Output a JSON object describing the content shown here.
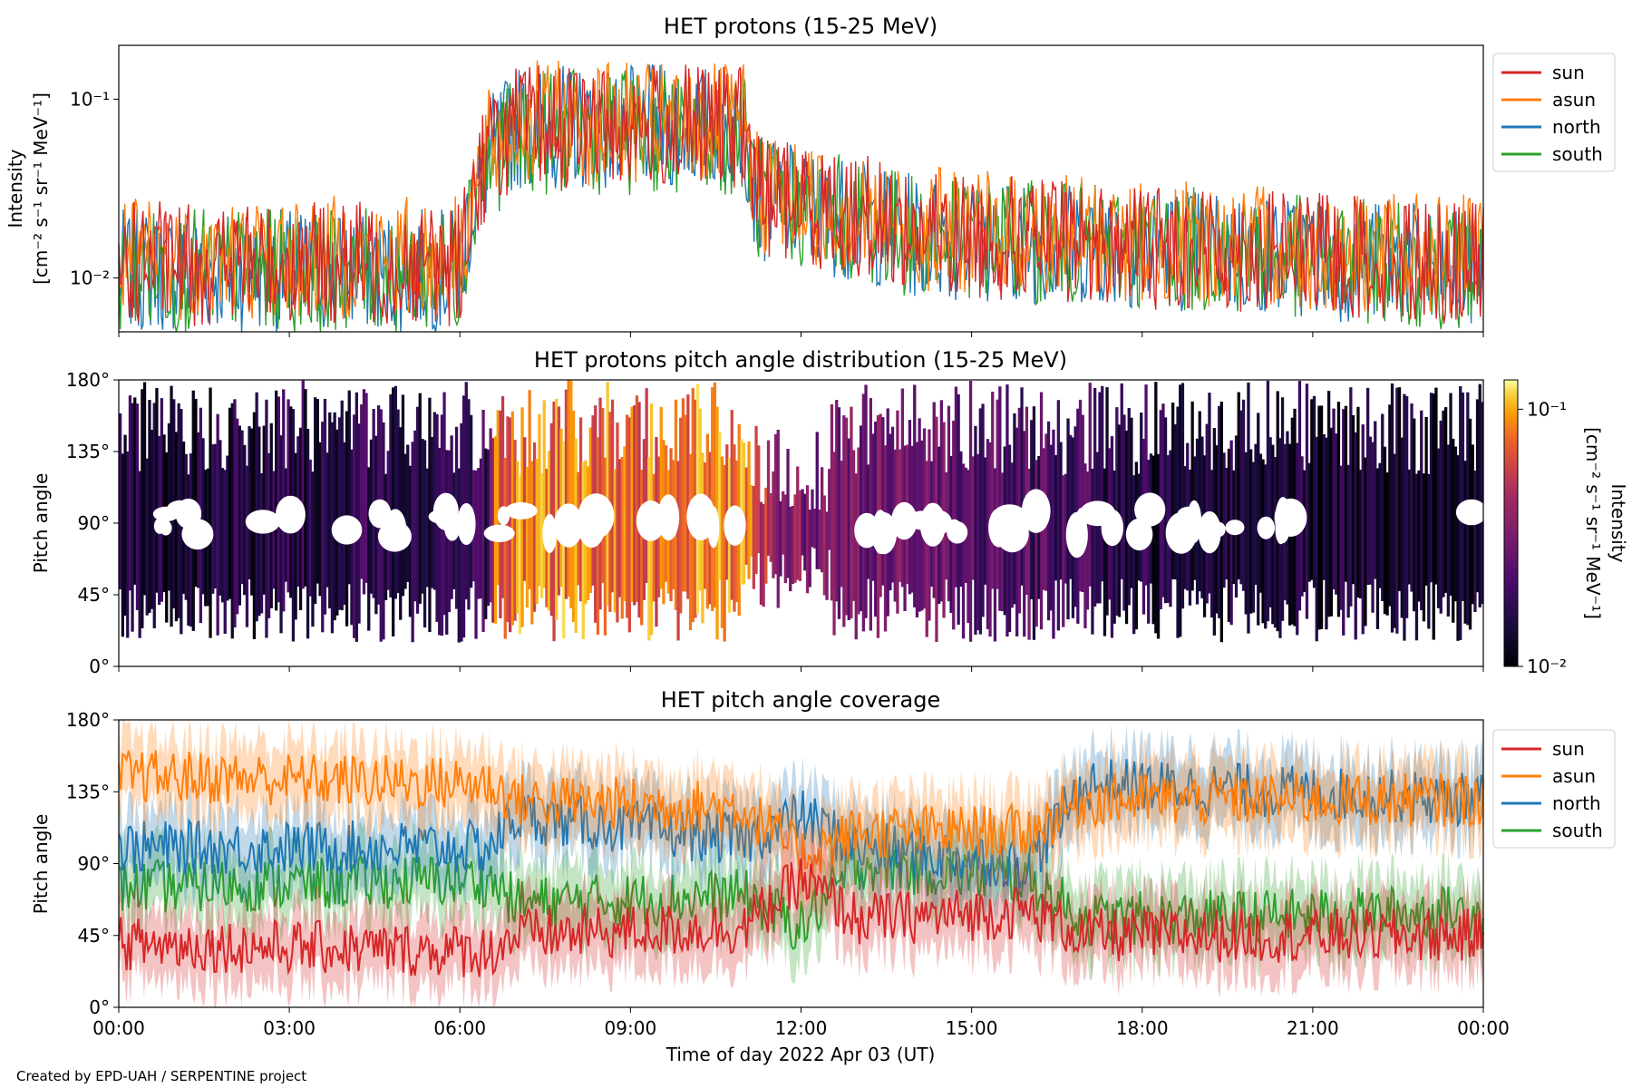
{
  "footer": "Created by EPD-UAH / SERPENTINE project",
  "series_colors": {
    "sun": "#d62728",
    "asun": "#ff7f0e",
    "north": "#1f77b4",
    "south": "#2ca02c"
  },
  "chart_data": [
    {
      "type": "line",
      "title": "HET protons (15-25 MeV)",
      "ylabel": [
        "Intensity",
        "[cm⁻² s⁻¹ sr⁻¹ MeV⁻¹]"
      ],
      "yscale": "log",
      "ylim": [
        0.005,
        0.2
      ],
      "yticks": [
        {
          "value": 0.1,
          "label": "10⁻¹"
        },
        {
          "value": 0.01,
          "label": "10⁻²"
        }
      ],
      "legend": {
        "placement": "outside-right-top",
        "entries": [
          "sun",
          "asun",
          "north",
          "south"
        ]
      },
      "x_range_hours": [
        0,
        24
      ],
      "series": [
        {
          "name": "sun",
          "color": "#d62728",
          "profile": [
            [
              0,
              0.012
            ],
            [
              6,
              0.012
            ],
            [
              6.5,
              0.05
            ],
            [
              7,
              0.07
            ],
            [
              11,
              0.07
            ],
            [
              11.2,
              0.03
            ],
            [
              14,
              0.018
            ],
            [
              18,
              0.015
            ],
            [
              24,
              0.012
            ]
          ]
        },
        {
          "name": "asun",
          "color": "#ff7f0e",
          "profile": [
            [
              0,
              0.013
            ],
            [
              6,
              0.013
            ],
            [
              6.5,
              0.05
            ],
            [
              7,
              0.075
            ],
            [
              11,
              0.07
            ],
            [
              11.2,
              0.03
            ],
            [
              14,
              0.019
            ],
            [
              18,
              0.016
            ],
            [
              24,
              0.013
            ]
          ]
        },
        {
          "name": "north",
          "color": "#1f77b4",
          "profile": [
            [
              0,
              0.011
            ],
            [
              6,
              0.011
            ],
            [
              6.5,
              0.045
            ],
            [
              7,
              0.07
            ],
            [
              11,
              0.07
            ],
            [
              11.2,
              0.028
            ],
            [
              14,
              0.017
            ],
            [
              18,
              0.015
            ],
            [
              24,
              0.011
            ]
          ]
        },
        {
          "name": "south",
          "color": "#2ca02c",
          "profile": [
            [
              0,
              0.011
            ],
            [
              6,
              0.011
            ],
            [
              6.5,
              0.045
            ],
            [
              7,
              0.065
            ],
            [
              11,
              0.065
            ],
            [
              11.2,
              0.028
            ],
            [
              14,
              0.017
            ],
            [
              18,
              0.015
            ],
            [
              24,
              0.011
            ]
          ]
        }
      ]
    },
    {
      "type": "heatmap",
      "title": "HET protons pitch angle distribution (15-25 MeV)",
      "ylabel": "Pitch angle",
      "ylim": [
        0,
        180
      ],
      "yticks": [
        "0°",
        "45°",
        "90°",
        "135°",
        "180°"
      ],
      "colorbar": {
        "label": [
          "Intensity",
          "[cm⁻² s⁻¹ sr⁻¹ MeV⁻¹]"
        ],
        "scale": "log",
        "range": [
          0.01,
          0.13
        ],
        "ticks": [
          {
            "value": 0.1,
            "label": "10⁻¹"
          },
          {
            "value": 0.01,
            "label": "10⁻²"
          }
        ],
        "colormap": "inferno"
      },
      "x_range_hours": [
        0,
        24
      ],
      "intensity_profile": [
        [
          0,
          0.014
        ],
        [
          6.5,
          0.018
        ],
        [
          6.6,
          0.08
        ],
        [
          11,
          0.08
        ],
        [
          11.5,
          0.035
        ],
        [
          13,
          0.03
        ],
        [
          16,
          0.022
        ],
        [
          18,
          0.015
        ],
        [
          24,
          0.012
        ]
      ]
    },
    {
      "type": "line",
      "title": "HET pitch angle coverage",
      "ylabel": "Pitch angle",
      "xlabel": "Time of day 2022 Apr 03 (UT)",
      "ylim": [
        0,
        180
      ],
      "yticks": [
        "0°",
        "45°",
        "90°",
        "135°",
        "180°"
      ],
      "xticks": [
        "00:00",
        "03:00",
        "06:00",
        "09:00",
        "12:00",
        "15:00",
        "18:00",
        "21:00",
        "00:00"
      ],
      "legend": {
        "placement": "outside-right-top",
        "entries": [
          "sun",
          "asun",
          "north",
          "south"
        ]
      },
      "x_range_hours": [
        0,
        24
      ],
      "series": [
        {
          "name": "sun",
          "color": "#d62728",
          "profile": [
            [
              0,
              40
            ],
            [
              6.5,
              35
            ],
            [
              7,
              45
            ],
            [
              11,
              50
            ],
            [
              12,
              80
            ],
            [
              13,
              55
            ],
            [
              16,
              60
            ],
            [
              17,
              45
            ],
            [
              24,
              45
            ]
          ]
        },
        {
          "name": "asun",
          "color": "#ff7f0e",
          "profile": [
            [
              0,
              145
            ],
            [
              6.5,
              140
            ],
            [
              7,
              130
            ],
            [
              11,
              125
            ],
            [
              12,
              95
            ],
            [
              13,
              110
            ],
            [
              16,
              110
            ],
            [
              17,
              130
            ],
            [
              24,
              130
            ]
          ]
        },
        {
          "name": "north",
          "color": "#1f77b4",
          "profile": [
            [
              0,
              100
            ],
            [
              6.5,
              100
            ],
            [
              7,
              120
            ],
            [
              11,
              105
            ],
            [
              12,
              120
            ],
            [
              13,
              100
            ],
            [
              16,
              90
            ],
            [
              17,
              140
            ],
            [
              24,
              130
            ]
          ]
        },
        {
          "name": "south",
          "color": "#2ca02c",
          "profile": [
            [
              0,
              75
            ],
            [
              6.5,
              80
            ],
            [
              7,
              65
            ],
            [
              11,
              70
            ],
            [
              12,
              50
            ],
            [
              13,
              90
            ],
            [
              16,
              80
            ],
            [
              17,
              55
            ],
            [
              24,
              60
            ]
          ]
        }
      ]
    }
  ]
}
